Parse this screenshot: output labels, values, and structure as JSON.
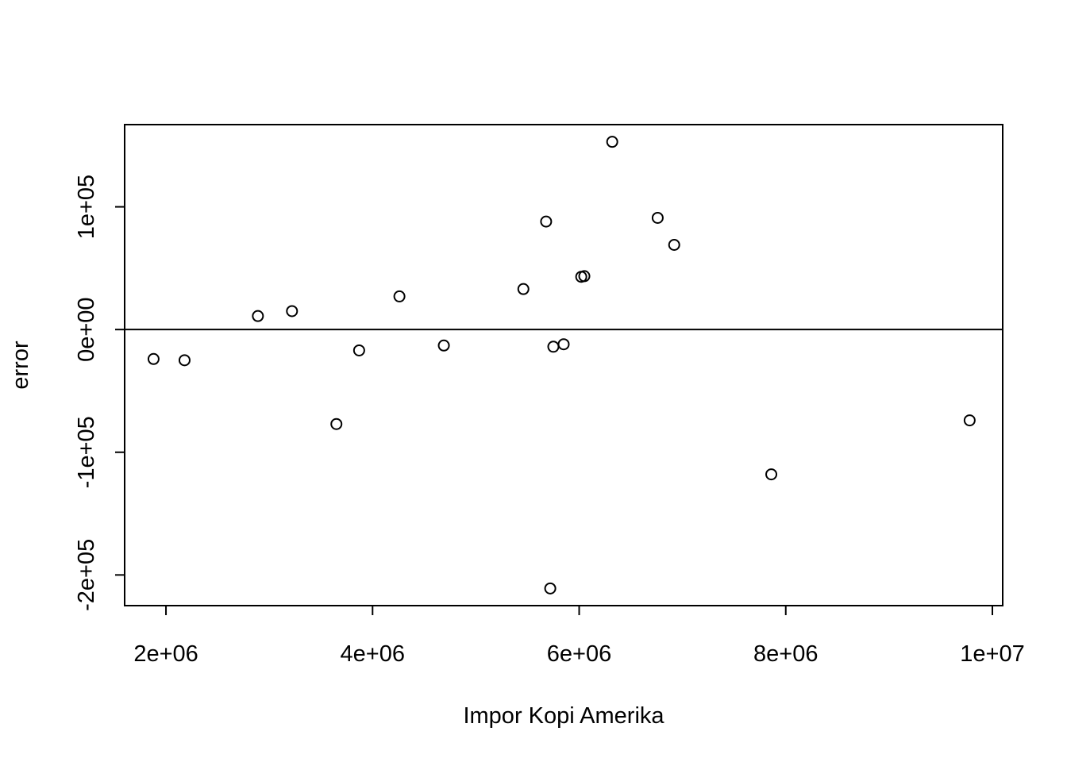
{
  "chart_data": {
    "type": "scatter",
    "title": "",
    "xlabel": "Impor Kopi Amerika",
    "ylabel": "error",
    "xlim": [
      1600000,
      10100000
    ],
    "ylim": [
      -225000,
      167000
    ],
    "x_ticks": [
      2000000,
      4000000,
      6000000,
      8000000,
      10000000
    ],
    "x_tick_labels": [
      "2e+06",
      "4e+06",
      "6e+06",
      "8e+06",
      "1e+07"
    ],
    "y_ticks": [
      -200000,
      -100000,
      0,
      100000
    ],
    "y_tick_labels": [
      "-2e+05",
      "-1e+05",
      "0e+00",
      "1e+05"
    ],
    "reference_line_y": 0,
    "grid": false,
    "points": [
      {
        "x": 1880000,
        "y": -24000
      },
      {
        "x": 2180000,
        "y": -25000
      },
      {
        "x": 2890000,
        "y": 11000
      },
      {
        "x": 3220000,
        "y": 15000
      },
      {
        "x": 3650000,
        "y": -77000
      },
      {
        "x": 3870000,
        "y": -17000
      },
      {
        "x": 4260000,
        "y": 27000
      },
      {
        "x": 4690000,
        "y": -13000
      },
      {
        "x": 5460000,
        "y": 33000
      },
      {
        "x": 5680000,
        "y": 88000
      },
      {
        "x": 5720000,
        "y": -211000
      },
      {
        "x": 5750000,
        "y": -14000
      },
      {
        "x": 5850000,
        "y": -12000
      },
      {
        "x": 6020000,
        "y": 43000
      },
      {
        "x": 6050000,
        "y": 43500
      },
      {
        "x": 6320000,
        "y": 153000
      },
      {
        "x": 6760000,
        "y": 91000
      },
      {
        "x": 6920000,
        "y": 69000
      },
      {
        "x": 7860000,
        "y": -118000
      },
      {
        "x": 9780000,
        "y": -74000
      }
    ]
  }
}
